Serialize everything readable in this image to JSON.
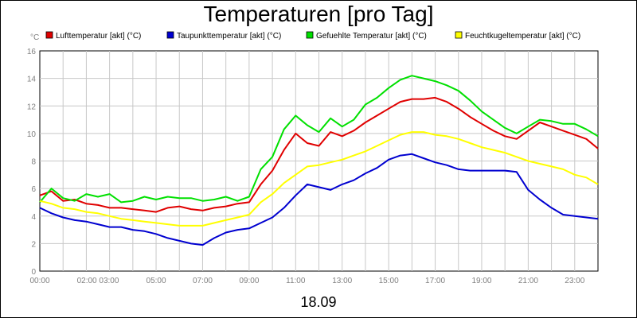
{
  "chart_data": {
    "type": "line",
    "title": "Temperaturen [pro Tag]",
    "ylabel": "°C",
    "xlabel": "18.09",
    "ylim": [
      0,
      16
    ],
    "yticks": [
      0,
      2,
      4,
      6,
      8,
      10,
      12,
      14,
      16
    ],
    "xlim": [
      0,
      24
    ],
    "xticks": [
      {
        "x": 0,
        "label": "00:00"
      },
      {
        "x": 2.5,
        "label": "02:00 03:00"
      },
      {
        "x": 5,
        "label": "05:00"
      },
      {
        "x": 7,
        "label": "07:00"
      },
      {
        "x": 9,
        "label": "09:00"
      },
      {
        "x": 11,
        "label": "11:00"
      },
      {
        "x": 13,
        "label": "13:00"
      },
      {
        "x": 15,
        "label": "15:00"
      },
      {
        "x": 17,
        "label": "17:00"
      },
      {
        "x": 19,
        "label": "19:00"
      },
      {
        "x": 21,
        "label": "21:00"
      },
      {
        "x": 23,
        "label": "23:00"
      }
    ],
    "grid": true,
    "legend_position": "top",
    "x": [
      0,
      0.5,
      1,
      1.5,
      2,
      2.5,
      3,
      3.5,
      4,
      4.5,
      5,
      5.5,
      6,
      6.5,
      7,
      7.5,
      8,
      8.5,
      9,
      9.5,
      10,
      10.5,
      11,
      11.5,
      12,
      12.5,
      13,
      13.5,
      14,
      14.5,
      15,
      15.5,
      16,
      16.5,
      17,
      17.5,
      18,
      18.5,
      19,
      19.5,
      20,
      20.5,
      21,
      21.5,
      22,
      22.5,
      23,
      23.5,
      24
    ],
    "series": [
      {
        "name": "Lufttemperatur [akt] (°C)",
        "color": "#e00000",
        "values": [
          5.5,
          5.8,
          5.1,
          5.2,
          4.9,
          4.8,
          4.6,
          4.6,
          4.5,
          4.4,
          4.3,
          4.6,
          4.7,
          4.5,
          4.4,
          4.6,
          4.7,
          4.9,
          5.0,
          6.3,
          7.3,
          8.8,
          10.0,
          9.3,
          9.1,
          10.1,
          9.8,
          10.2,
          10.8,
          11.3,
          11.8,
          12.3,
          12.5,
          12.5,
          12.6,
          12.3,
          11.8,
          11.2,
          10.7,
          10.2,
          9.8,
          9.6,
          10.2,
          10.8,
          10.5,
          10.2,
          9.9,
          9.6,
          8.9
        ]
      },
      {
        "name": "Taupunkttemperatur [akt] (°C)",
        "color": "#0000d0",
        "values": [
          4.6,
          4.2,
          3.9,
          3.7,
          3.6,
          3.4,
          3.2,
          3.2,
          3.0,
          2.9,
          2.7,
          2.4,
          2.2,
          2.0,
          1.9,
          2.4,
          2.8,
          3.0,
          3.1,
          3.5,
          3.9,
          4.6,
          5.5,
          6.3,
          6.1,
          5.9,
          6.3,
          6.6,
          7.1,
          7.5,
          8.1,
          8.4,
          8.5,
          8.2,
          7.9,
          7.7,
          7.4,
          7.3,
          7.3,
          7.3,
          7.3,
          7.2,
          5.9,
          5.2,
          4.6,
          4.1,
          4.0,
          3.9,
          3.8
        ]
      },
      {
        "name": "Gefuehlte Temperatur [akt] (°C)",
        "color": "#00e000",
        "values": [
          5.0,
          6.0,
          5.3,
          5.1,
          5.6,
          5.4,
          5.6,
          5.0,
          5.1,
          5.4,
          5.2,
          5.4,
          5.3,
          5.3,
          5.1,
          5.2,
          5.4,
          5.1,
          5.4,
          7.4,
          8.3,
          10.3,
          11.3,
          10.6,
          10.1,
          11.1,
          10.5,
          11.0,
          12.1,
          12.6,
          13.3,
          13.9,
          14.2,
          14.0,
          13.8,
          13.5,
          13.1,
          12.4,
          11.6,
          11.0,
          10.4,
          10.0,
          10.5,
          11.0,
          10.9,
          10.7,
          10.7,
          10.3,
          9.8
        ]
      },
      {
        "name": "Feuchtkugeltemperatur [akt] (°C)",
        "color": "#ffff00",
        "values": [
          5.1,
          4.9,
          4.6,
          4.5,
          4.3,
          4.2,
          4.0,
          3.8,
          3.7,
          3.6,
          3.5,
          3.4,
          3.3,
          3.3,
          3.3,
          3.5,
          3.7,
          3.9,
          4.1,
          5.0,
          5.6,
          6.4,
          7.0,
          7.6,
          7.7,
          7.9,
          8.1,
          8.4,
          8.7,
          9.1,
          9.5,
          9.9,
          10.1,
          10.1,
          9.9,
          9.8,
          9.6,
          9.3,
          9.0,
          8.8,
          8.6,
          8.3,
          8.0,
          7.8,
          7.6,
          7.4,
          7.0,
          6.8,
          6.3
        ]
      }
    ]
  }
}
